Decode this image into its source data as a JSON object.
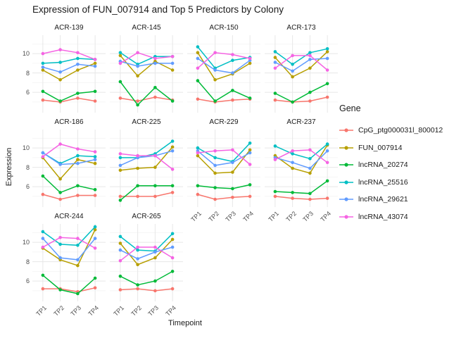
{
  "title": "Expression of FUN_007914 and Top 5 Predictors by Colony",
  "axes": {
    "x_label": "Timepoint",
    "y_label": "Expression",
    "x_ticks": [
      "TP1",
      "TP2",
      "TP3",
      "TP4"
    ],
    "y_ticks": [
      6,
      8,
      10
    ]
  },
  "legend": {
    "title": "Gene",
    "entries": [
      {
        "label": "CpG_ptg000031l_800012",
        "color": "#F8766D"
      },
      {
        "label": "FUN_007914",
        "color": "#B79F00"
      },
      {
        "label": "lncRNA_20274",
        "color": "#00BA38"
      },
      {
        "label": "lncRNA_25516",
        "color": "#00BFC4"
      },
      {
        "label": "lncRNA_29621",
        "color": "#619CFF"
      },
      {
        "label": "lncRNA_43074",
        "color": "#F564E3"
      }
    ]
  },
  "chart_data": {
    "type": "line",
    "faceted_by": "Colony",
    "x": [
      "TP1",
      "TP2",
      "TP3",
      "TP4"
    ],
    "ylim": [
      3.9,
      11.9
    ],
    "y_major_gridlines": [
      6,
      8,
      10
    ],
    "y_minor_gridlines": [
      5,
      7,
      9,
      11
    ],
    "grid": "on",
    "legend_position": "right",
    "genes": [
      "CpG_ptg000031l_800012",
      "FUN_007914",
      "lncRNA_20274",
      "lncRNA_25516",
      "lncRNA_29621",
      "lncRNA_43074"
    ],
    "facets": [
      {
        "colony": "ACR-139",
        "values": {
          "CpG_ptg000031l_800012": [
            5.2,
            5.0,
            5.4,
            5.1
          ],
          "FUN_007914": [
            8.3,
            7.3,
            8.3,
            9.0
          ],
          "lncRNA_20274": [
            6.1,
            5.1,
            5.9,
            6.1
          ],
          "lncRNA_25516": [
            9.0,
            9.1,
            9.5,
            9.4
          ],
          "lncRNA_29621": [
            8.6,
            8.1,
            8.9,
            8.7
          ],
          "lncRNA_43074": [
            10.0,
            10.4,
            10.1,
            9.4
          ]
        }
      },
      {
        "colony": "ACR-145",
        "values": {
          "CpG_ptg000031l_800012": [
            5.4,
            5.1,
            5.5,
            5.2
          ],
          "FUN_007914": [
            9.8,
            7.7,
            9.2,
            8.3
          ],
          "lncRNA_20274": [
            7.1,
            4.7,
            6.5,
            5.1
          ],
          "lncRNA_25516": [
            10.1,
            8.9,
            9.7,
            9.7
          ],
          "lncRNA_29621": [
            9.2,
            8.7,
            9.0,
            9.0
          ],
          "lncRNA_43074": [
            9.0,
            10.1,
            9.5,
            9.7
          ]
        }
      },
      {
        "colony": "ACR-150",
        "values": {
          "CpG_ptg000031l_800012": [
            5.3,
            5.0,
            5.2,
            5.3
          ],
          "FUN_007914": [
            10.1,
            7.3,
            7.9,
            9.0
          ],
          "lncRNA_20274": [
            7.2,
            5.1,
            6.2,
            5.4
          ],
          "lncRNA_25516": [
            10.7,
            8.5,
            9.3,
            9.6
          ],
          "lncRNA_29621": [
            9.5,
            8.3,
            8.0,
            9.3
          ],
          "lncRNA_43074": [
            8.5,
            10.1,
            9.9,
            9.5
          ]
        }
      },
      {
        "colony": "ACR-173",
        "values": {
          "CpG_ptg000031l_800012": [
            5.2,
            5.0,
            5.1,
            5.5
          ],
          "FUN_007914": [
            9.6,
            7.6,
            8.5,
            10.2
          ],
          "lncRNA_20274": [
            5.9,
            5.0,
            6.0,
            6.9
          ],
          "lncRNA_25516": [
            10.2,
            8.9,
            10.1,
            10.5
          ],
          "lncRNA_29621": [
            9.1,
            8.2,
            9.4,
            9.5
          ],
          "lncRNA_43074": [
            8.5,
            9.8,
            9.8,
            8.3
          ]
        }
      },
      {
        "colony": "ACR-186",
        "values": {
          "CpG_ptg000031l_800012": [
            5.2,
            4.7,
            5.1,
            5.1
          ],
          "FUN_007914": [
            9.0,
            6.8,
            8.8,
            8.4
          ],
          "lncRNA_20274": [
            7.1,
            5.4,
            6.1,
            5.7
          ],
          "lncRNA_25516": [
            9.5,
            8.4,
            9.2,
            9.1
          ],
          "lncRNA_29621": [
            9.5,
            8.3,
            8.4,
            8.8
          ],
          "lncRNA_43074": [
            9.1,
            10.4,
            9.9,
            9.6
          ]
        }
      },
      {
        "colony": "ACR-225",
        "values": {
          "CpG_ptg000031l_800012": [
            5.0,
            5.0,
            5.0,
            5.4
          ],
          "FUN_007914": [
            7.7,
            7.9,
            8.0,
            10.1
          ],
          "lncRNA_20274": [
            4.6,
            6.1,
            6.1,
            6.1
          ],
          "lncRNA_25516": [
            9.0,
            9.0,
            9.4,
            10.7
          ],
          "lncRNA_29621": [
            8.2,
            9.0,
            9.2,
            9.7
          ],
          "lncRNA_43074": [
            9.4,
            9.2,
            9.2,
            7.8
          ]
        }
      },
      {
        "colony": "ACR-229",
        "values": {
          "CpG_ptg000031l_800012": [
            5.2,
            4.7,
            4.9,
            5.0
          ],
          "FUN_007914": [
            9.2,
            7.4,
            7.5,
            9.8
          ],
          "lncRNA_20274": [
            6.1,
            5.9,
            5.8,
            6.2
          ],
          "lncRNA_25516": [
            10.0,
            9.0,
            8.6,
            10.5
          ],
          "lncRNA_29621": [
            9.7,
            8.2,
            8.5,
            9.5
          ],
          "lncRNA_43074": [
            9.5,
            9.7,
            9.8,
            8.3
          ]
        }
      },
      {
        "colony": "ACR-237",
        "values": {
          "CpG_ptg000031l_800012": [
            5.0,
            4.8,
            4.7,
            4.8
          ],
          "FUN_007914": [
            9.2,
            7.9,
            7.4,
            10.3
          ],
          "lncRNA_20274": [
            5.5,
            5.4,
            5.3,
            6.6
          ],
          "lncRNA_25516": [
            10.2,
            9.4,
            8.9,
            10.4
          ],
          "lncRNA_29621": [
            9.0,
            8.5,
            7.9,
            9.7
          ],
          "lncRNA_43074": [
            8.8,
            9.7,
            9.8,
            8.5
          ]
        }
      },
      {
        "colony": "ACR-244",
        "values": {
          "CpG_ptg000031l_800012": [
            5.2,
            5.2,
            4.9,
            5.3
          ],
          "FUN_007914": [
            9.4,
            8.2,
            7.6,
            11.3
          ],
          "lncRNA_20274": [
            6.6,
            5.1,
            4.7,
            6.3
          ],
          "lncRNA_25516": [
            11.1,
            9.8,
            9.7,
            11.6
          ],
          "lncRNA_29621": [
            10.4,
            8.4,
            8.2,
            10.4
          ],
          "lncRNA_43074": [
            9.5,
            10.5,
            10.4,
            9.4
          ]
        }
      },
      {
        "colony": "ACR-265",
        "values": {
          "CpG_ptg000031l_800012": [
            5.1,
            5.2,
            5.0,
            5.2
          ],
          "FUN_007914": [
            9.9,
            7.7,
            8.4,
            10.3
          ],
          "lncRNA_20274": [
            6.5,
            5.6,
            6.0,
            7.0
          ],
          "lncRNA_25516": [
            10.6,
            9.2,
            9.1,
            10.9
          ],
          "lncRNA_29621": [
            9.2,
            8.3,
            9.0,
            9.5
          ],
          "lncRNA_43074": [
            8.1,
            9.5,
            9.5,
            8.4
          ]
        }
      }
    ],
    "facets_with_x_axis": [
      "ACR-229",
      "ACR-237",
      "ACR-244",
      "ACR-265"
    ]
  }
}
